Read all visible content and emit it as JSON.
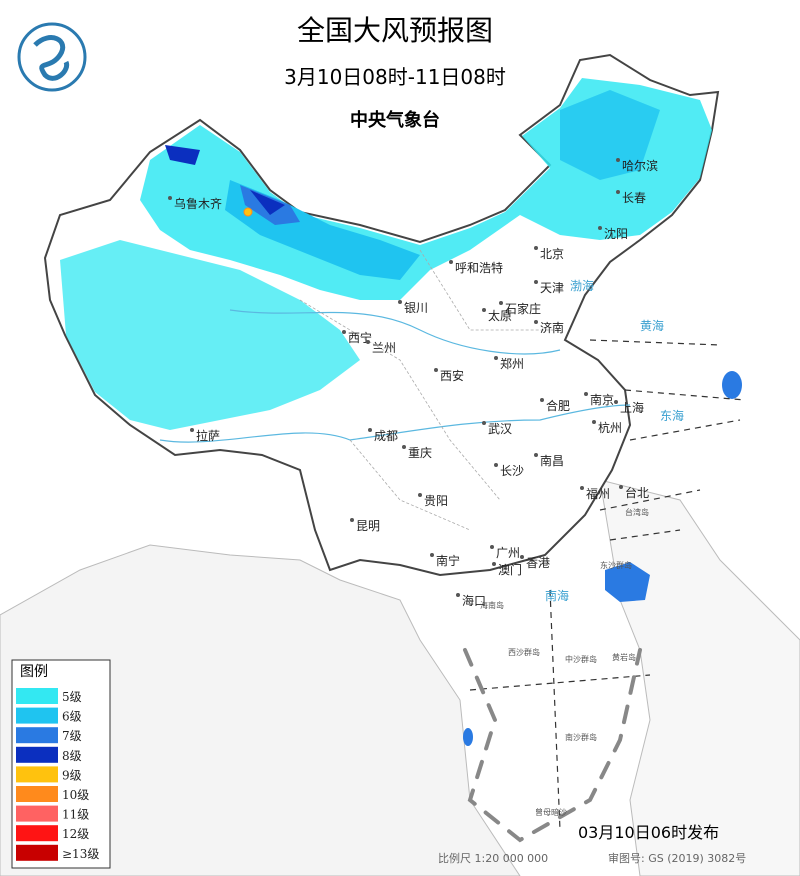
{
  "header": {
    "title": "全国大风预报图",
    "valid_time": "3月10日08时-11日08时",
    "issuer": "中央气象台"
  },
  "legend": {
    "title": "图例",
    "items": [
      {
        "label": "5级",
        "color": "#33e8f2"
      },
      {
        "label": "6级",
        "color": "#1fc4f0"
      },
      {
        "label": "7级",
        "color": "#2a7ae2"
      },
      {
        "label": "8级",
        "color": "#0b2fbf"
      },
      {
        "label": "9级",
        "color": "#ffc20e"
      },
      {
        "label": "10级",
        "color": "#ff8a1c"
      },
      {
        "label": "11级",
        "color": "#ff6262"
      },
      {
        "label": "12级",
        "color": "#ff1414"
      },
      {
        "label": "≥13级",
        "color": "#c80000"
      }
    ]
  },
  "cities": [
    "乌鲁木齐",
    "哈尔滨",
    "长春",
    "沈阳",
    "北京",
    "呼和浩特",
    "天津",
    "银川",
    "太原",
    "石家庄",
    "济南",
    "西宁",
    "兰州",
    "西安",
    "郑州",
    "合肥",
    "南京",
    "上海",
    "杭州",
    "拉萨",
    "成都",
    "武汉",
    "重庆",
    "长沙",
    "南昌",
    "贵阳",
    "福州",
    "台北",
    "昆明",
    "南宁",
    "广州",
    "澳门",
    "香港",
    "海口"
  ],
  "seas": [
    "渤海",
    "黄海",
    "东海",
    "南海"
  ],
  "islands": [
    "海南岛",
    "台湾岛",
    "东沙群岛",
    "西沙群岛",
    "中沙群岛",
    "黄岩岛",
    "南沙群岛",
    "曾母暗沙"
  ],
  "footer": {
    "issued": "03月10日06时发布",
    "scale": "比例尺 1:20 000 000",
    "review_no": "审图号: GS (2019) 3082号"
  }
}
